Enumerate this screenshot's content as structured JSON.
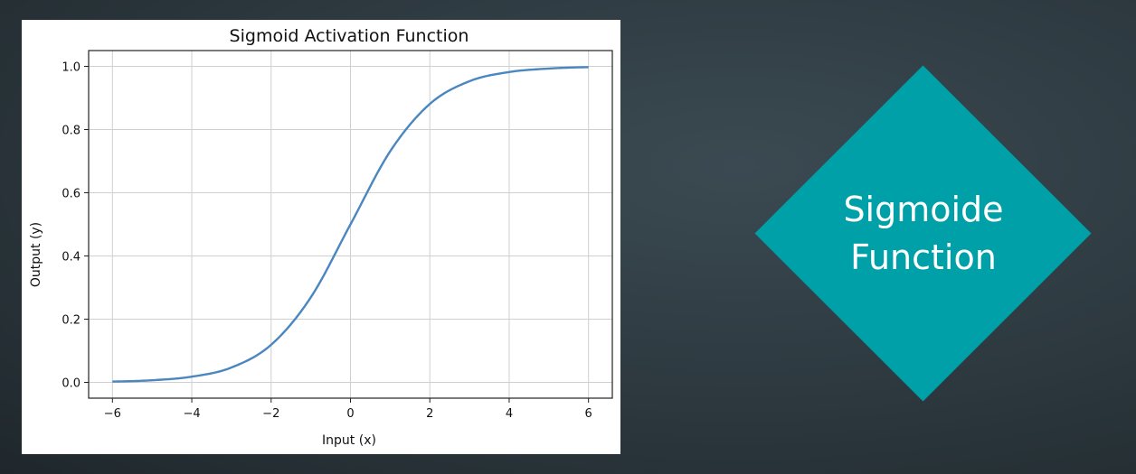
{
  "slide": {
    "heading_line1": "Sigmoide",
    "heading_line2": "Function",
    "accent_color": "#00a0a8",
    "background_color": "#2c383e"
  },
  "chart_data": {
    "type": "line",
    "title": "Sigmoid Activation Function",
    "xlabel": "Input (x)",
    "ylabel": "Output (y)",
    "xlim": [
      -6.6,
      6.6
    ],
    "ylim": [
      -0.05,
      1.05
    ],
    "xticks": [
      -6,
      -4,
      -2,
      0,
      2,
      4,
      6
    ],
    "xtick_labels": [
      "−6",
      "−4",
      "−2",
      "0",
      "2",
      "4",
      "6"
    ],
    "yticks": [
      0.0,
      0.2,
      0.4,
      0.6,
      0.8,
      1.0
    ],
    "ytick_labels": [
      "0.0",
      "0.2",
      "0.4",
      "0.6",
      "0.8",
      "1.0"
    ],
    "grid": true,
    "series": [
      {
        "color": "#4a86c0",
        "x": [
          -6,
          -5,
          -4,
          -3,
          -2,
          -1,
          0,
          1,
          2,
          3,
          4,
          5,
          6
        ],
        "y": [
          0.0025,
          0.0067,
          0.018,
          0.047,
          0.119,
          0.269,
          0.5,
          0.731,
          0.881,
          0.953,
          0.982,
          0.993,
          0.9975
        ]
      }
    ]
  }
}
